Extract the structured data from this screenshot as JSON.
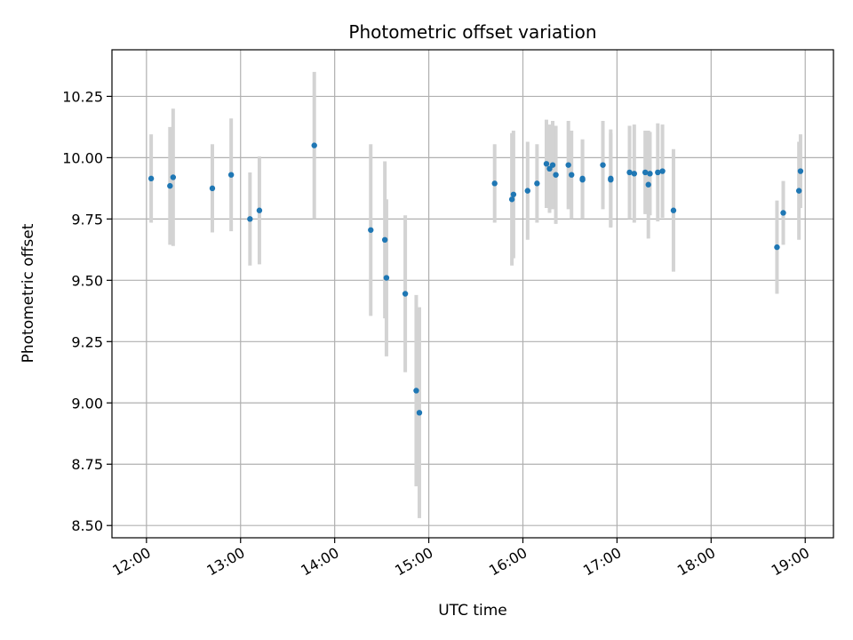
{
  "chart_data": {
    "type": "scatter",
    "title": "Photometric offset variation",
    "xlabel": "UTC time",
    "ylabel": "Photometric offset",
    "x_ticks": [
      "12:00",
      "13:00",
      "14:00",
      "15:00",
      "16:00",
      "17:00",
      "18:00",
      "19:00"
    ],
    "y_ticks": [
      "8.50",
      "8.75",
      "9.00",
      "9.25",
      "9.50",
      "9.75",
      "10.00",
      "10.25"
    ],
    "xlim": [
      "11:38",
      "19:18"
    ],
    "ylim": [
      8.45,
      10.44
    ],
    "grid": true,
    "point_color": "#1f77b4",
    "errorbar_color": "#d3d3d3",
    "series": [
      {
        "points": [
          {
            "x": "12:03",
            "y": 9.915,
            "err": 0.18
          },
          {
            "x": "12:15",
            "y": 9.885,
            "err": 0.24
          },
          {
            "x": "12:17",
            "y": 9.92,
            "err": 0.28
          },
          {
            "x": "12:42",
            "y": 9.875,
            "err": 0.18
          },
          {
            "x": "12:54",
            "y": 9.93,
            "err": 0.23
          },
          {
            "x": "13:06",
            "y": 9.75,
            "err": 0.19
          },
          {
            "x": "13:12",
            "y": 9.785,
            "err": 0.22
          },
          {
            "x": "13:47",
            "y": 10.05,
            "err": 0.3
          },
          {
            "x": "14:23",
            "y": 9.705,
            "err": 0.35
          },
          {
            "x": "14:32",
            "y": 9.665,
            "err": 0.32
          },
          {
            "x": "14:33",
            "y": 9.51,
            "err": 0.32
          },
          {
            "x": "14:45",
            "y": 9.445,
            "err": 0.32
          },
          {
            "x": "14:52",
            "y": 9.05,
            "err": 0.39
          },
          {
            "x": "14:54",
            "y": 8.96,
            "err": 0.43
          },
          {
            "x": "15:42",
            "y": 9.895,
            "err": 0.16
          },
          {
            "x": "15:53",
            "y": 9.83,
            "err": 0.27
          },
          {
            "x": "15:54",
            "y": 9.85,
            "err": 0.26
          },
          {
            "x": "16:03",
            "y": 9.865,
            "err": 0.2
          },
          {
            "x": "16:09",
            "y": 9.895,
            "err": 0.16
          },
          {
            "x": "16:15",
            "y": 9.975,
            "err": 0.18
          },
          {
            "x": "16:17",
            "y": 9.955,
            "err": 0.18
          },
          {
            "x": "16:19",
            "y": 9.97,
            "err": 0.18
          },
          {
            "x": "16:21",
            "y": 9.93,
            "err": 0.2
          },
          {
            "x": "16:29",
            "y": 9.97,
            "err": 0.18
          },
          {
            "x": "16:31",
            "y": 9.93,
            "err": 0.18
          },
          {
            "x": "16:38",
            "y": 9.91,
            "err": 0.16
          },
          {
            "x": "16:38",
            "y": 9.915,
            "err": 0.16
          },
          {
            "x": "16:51",
            "y": 9.97,
            "err": 0.18
          },
          {
            "x": "16:56",
            "y": 9.91,
            "err": 0.19
          },
          {
            "x": "16:56",
            "y": 9.915,
            "err": 0.2
          },
          {
            "x": "17:08",
            "y": 9.94,
            "err": 0.19
          },
          {
            "x": "17:11",
            "y": 9.935,
            "err": 0.2
          },
          {
            "x": "17:18",
            "y": 9.94,
            "err": 0.17
          },
          {
            "x": "17:20",
            "y": 9.89,
            "err": 0.22
          },
          {
            "x": "17:21",
            "y": 9.935,
            "err": 0.17
          },
          {
            "x": "17:26",
            "y": 9.94,
            "err": 0.2
          },
          {
            "x": "17:29",
            "y": 9.945,
            "err": 0.19
          },
          {
            "x": "17:36",
            "y": 9.785,
            "err": 0.25
          },
          {
            "x": "18:42",
            "y": 9.635,
            "err": 0.19
          },
          {
            "x": "18:46",
            "y": 9.775,
            "err": 0.13
          },
          {
            "x": "18:56",
            "y": 9.865,
            "err": 0.2
          },
          {
            "x": "18:57",
            "y": 9.945,
            "err": 0.15
          }
        ]
      }
    ]
  }
}
